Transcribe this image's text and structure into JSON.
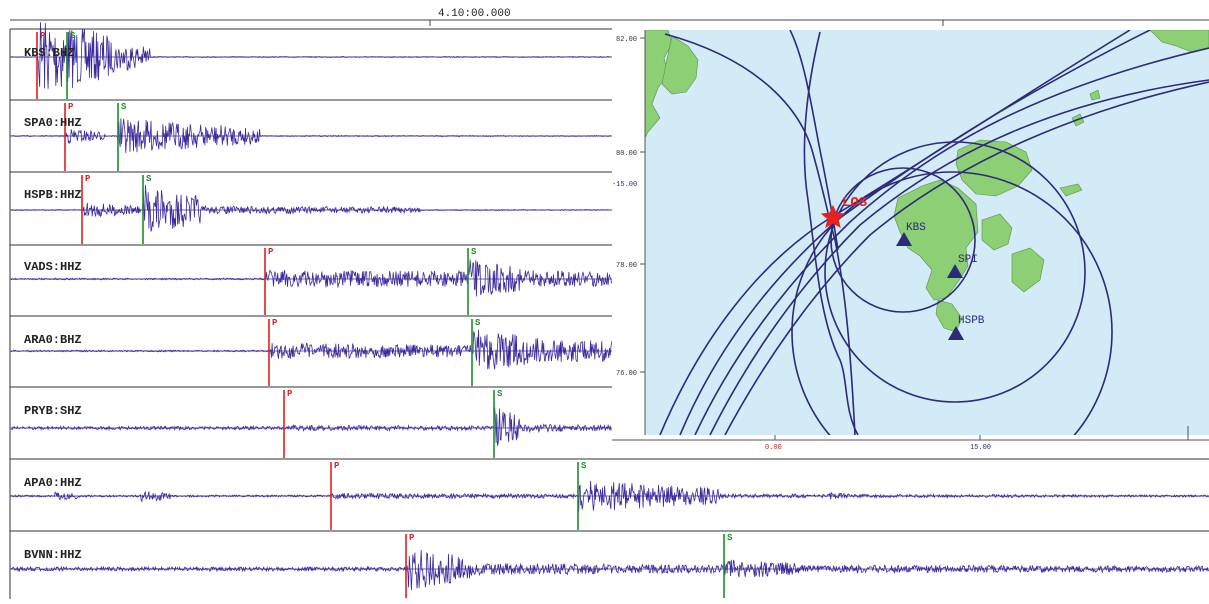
{
  "time_axis": {
    "label": "4.10:00.000"
  },
  "colors": {
    "trace": "#3a2a9c",
    "p_pick": "#e01f1f",
    "s_pick": "#1e8c2a",
    "sea": "#d3ebf6",
    "land": "#8ccf74",
    "land_stroke": "#5a8f50",
    "circle": "#2c2a7a",
    "epicenter": "#e82020",
    "station": "#2c2a7a",
    "axis_label": "#333333",
    "lon_label": "#cc2222",
    "lat_side_label": "#2c2a9c"
  },
  "chart_data": [
    {
      "type": "line",
      "description_type": "seismogram",
      "traces": [
        {
          "station": "KBS:BHZ",
          "label": "KBS:BHZ",
          "p": "P",
          "s": "S"
        },
        {
          "station": "SPA0:HHZ",
          "label": "SPA0:HHZ",
          "p": "P",
          "s": "S"
        },
        {
          "station": "HSPB:HHZ",
          "label": "HSPB:HHZ",
          "p": "P",
          "s": "S"
        },
        {
          "station": "VADS:HHZ",
          "label": "VADS:HHZ",
          "p": "P",
          "s": "S"
        },
        {
          "station": "ARA0:BHZ",
          "label": "ARA0:BHZ",
          "p": "P",
          "s": "S"
        },
        {
          "station": "PRYB:SHZ",
          "label": "PRYB:SHZ",
          "p": "P",
          "s": "S"
        },
        {
          "station": "APA0:HHZ",
          "label": "APA0:HHZ",
          "p": "P",
          "s": "S"
        },
        {
          "station": "BVNN:HHZ",
          "label": "BVNN:HHZ",
          "p": "P",
          "s": "S"
        }
      ]
    },
    {
      "type": "map",
      "lat_ticks": [
        "82.00",
        "80.00",
        "78.00",
        "76.00"
      ],
      "lat_side_label": "-15.00",
      "lon_ticks": [
        "0.00",
        "15.00"
      ],
      "epicenter_label": "LOS",
      "stations": [
        "KBS",
        "SPI",
        "HSPB"
      ]
    }
  ]
}
